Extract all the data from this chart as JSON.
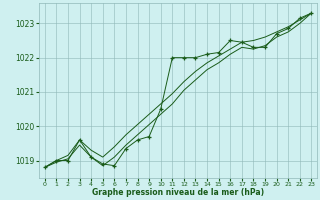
{
  "bg_color": "#cff0f0",
  "grid_color": "#90b8b8",
  "line_color": "#1a5c1a",
  "marker_color": "#1a5c1a",
  "xlabel": "Graphe pression niveau de la mer (hPa)",
  "xlabel_color": "#1a5c1a",
  "x_ticks": [
    0,
    1,
    2,
    3,
    4,
    5,
    6,
    7,
    8,
    9,
    10,
    11,
    12,
    13,
    14,
    15,
    16,
    17,
    18,
    19,
    20,
    21,
    22,
    23
  ],
  "ylim": [
    1018.5,
    1023.6
  ],
  "xlim": [
    -0.5,
    23.5
  ],
  "yticks": [
    1019,
    1020,
    1021,
    1022,
    1023
  ],
  "series_marker": [
    1018.8,
    1019.0,
    1019.0,
    1019.6,
    1019.1,
    1018.9,
    1018.85,
    1019.35,
    1019.6,
    1019.7,
    1020.5,
    1022.0,
    1022.0,
    1022.0,
    1022.1,
    1022.15,
    1022.5,
    1022.45,
    1022.3,
    1022.3,
    1022.7,
    1022.85,
    1023.15,
    1023.3
  ],
  "series_upper": [
    1018.8,
    1019.0,
    1019.15,
    1019.6,
    1019.3,
    1019.1,
    1019.4,
    1019.75,
    1020.05,
    1020.35,
    1020.65,
    1020.95,
    1021.3,
    1021.6,
    1021.85,
    1022.05,
    1022.25,
    1022.45,
    1022.5,
    1022.6,
    1022.75,
    1022.9,
    1023.1,
    1023.3
  ],
  "series_lower": [
    1018.8,
    1018.95,
    1019.05,
    1019.45,
    1019.1,
    1018.85,
    1019.1,
    1019.45,
    1019.75,
    1020.05,
    1020.35,
    1020.65,
    1021.05,
    1021.35,
    1021.65,
    1021.85,
    1022.1,
    1022.3,
    1022.25,
    1022.35,
    1022.6,
    1022.75,
    1023.0,
    1023.3
  ]
}
